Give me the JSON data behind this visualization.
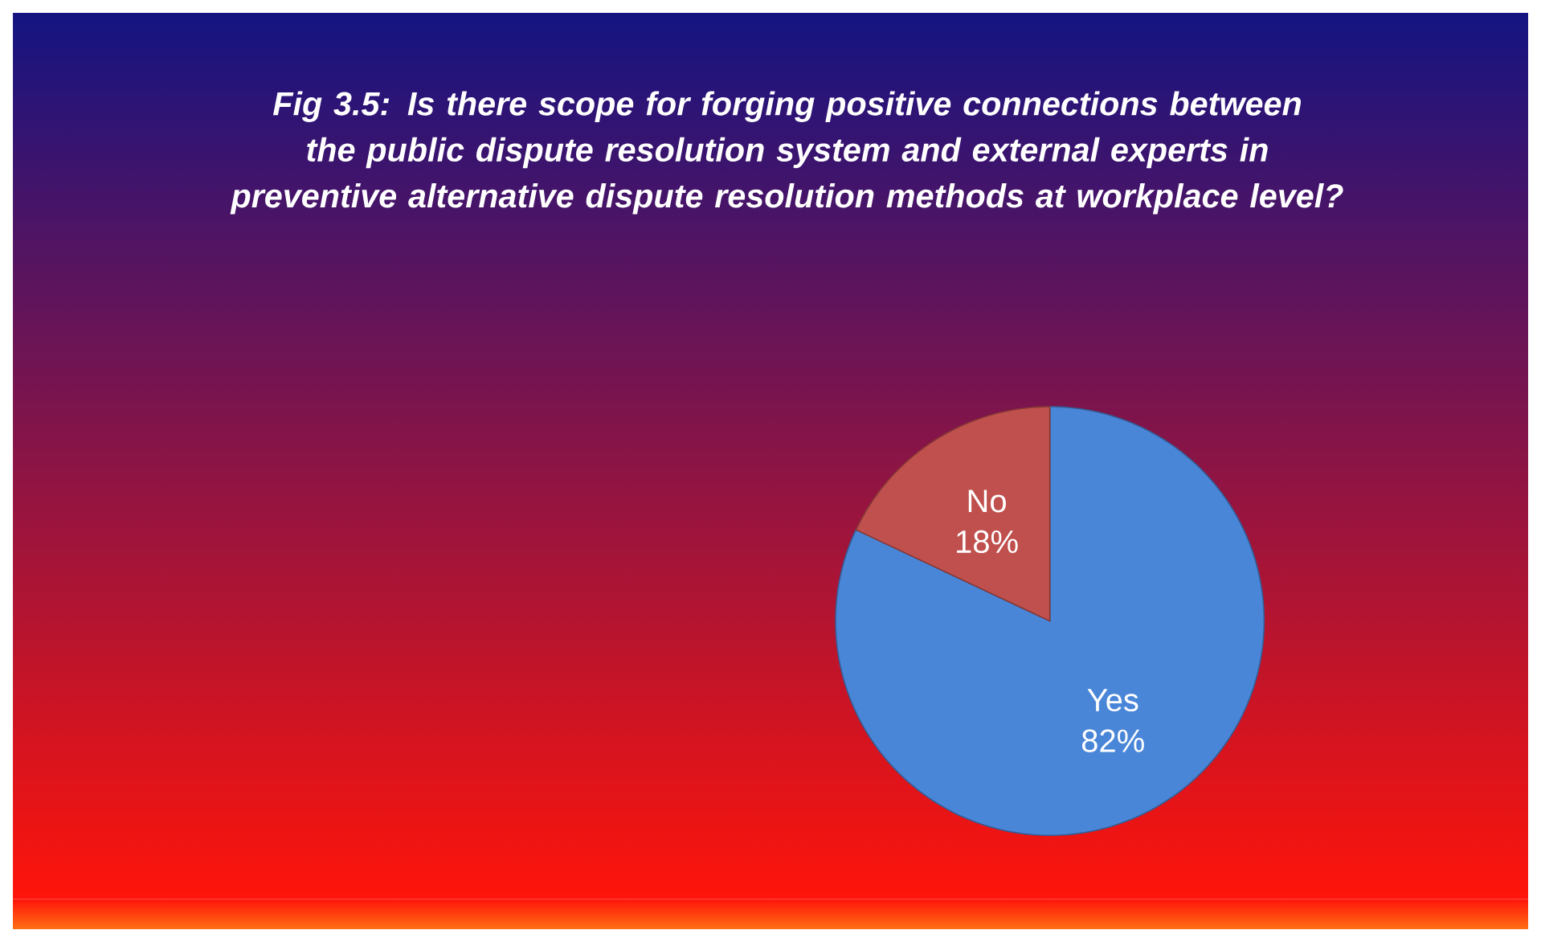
{
  "chart_data": {
    "type": "pie",
    "title": "Fig 3.5: Is there scope for forging positive connections between the public dispute resolution system and external experts in preventive alternative dispute resolution methods at workplace level?",
    "categories": [
      "Yes",
      "No"
    ],
    "values": [
      82,
      18
    ],
    "colors": [
      "#4a86d8",
      "#c0504d"
    ],
    "value_labels": [
      "82%",
      "18%"
    ]
  }
}
